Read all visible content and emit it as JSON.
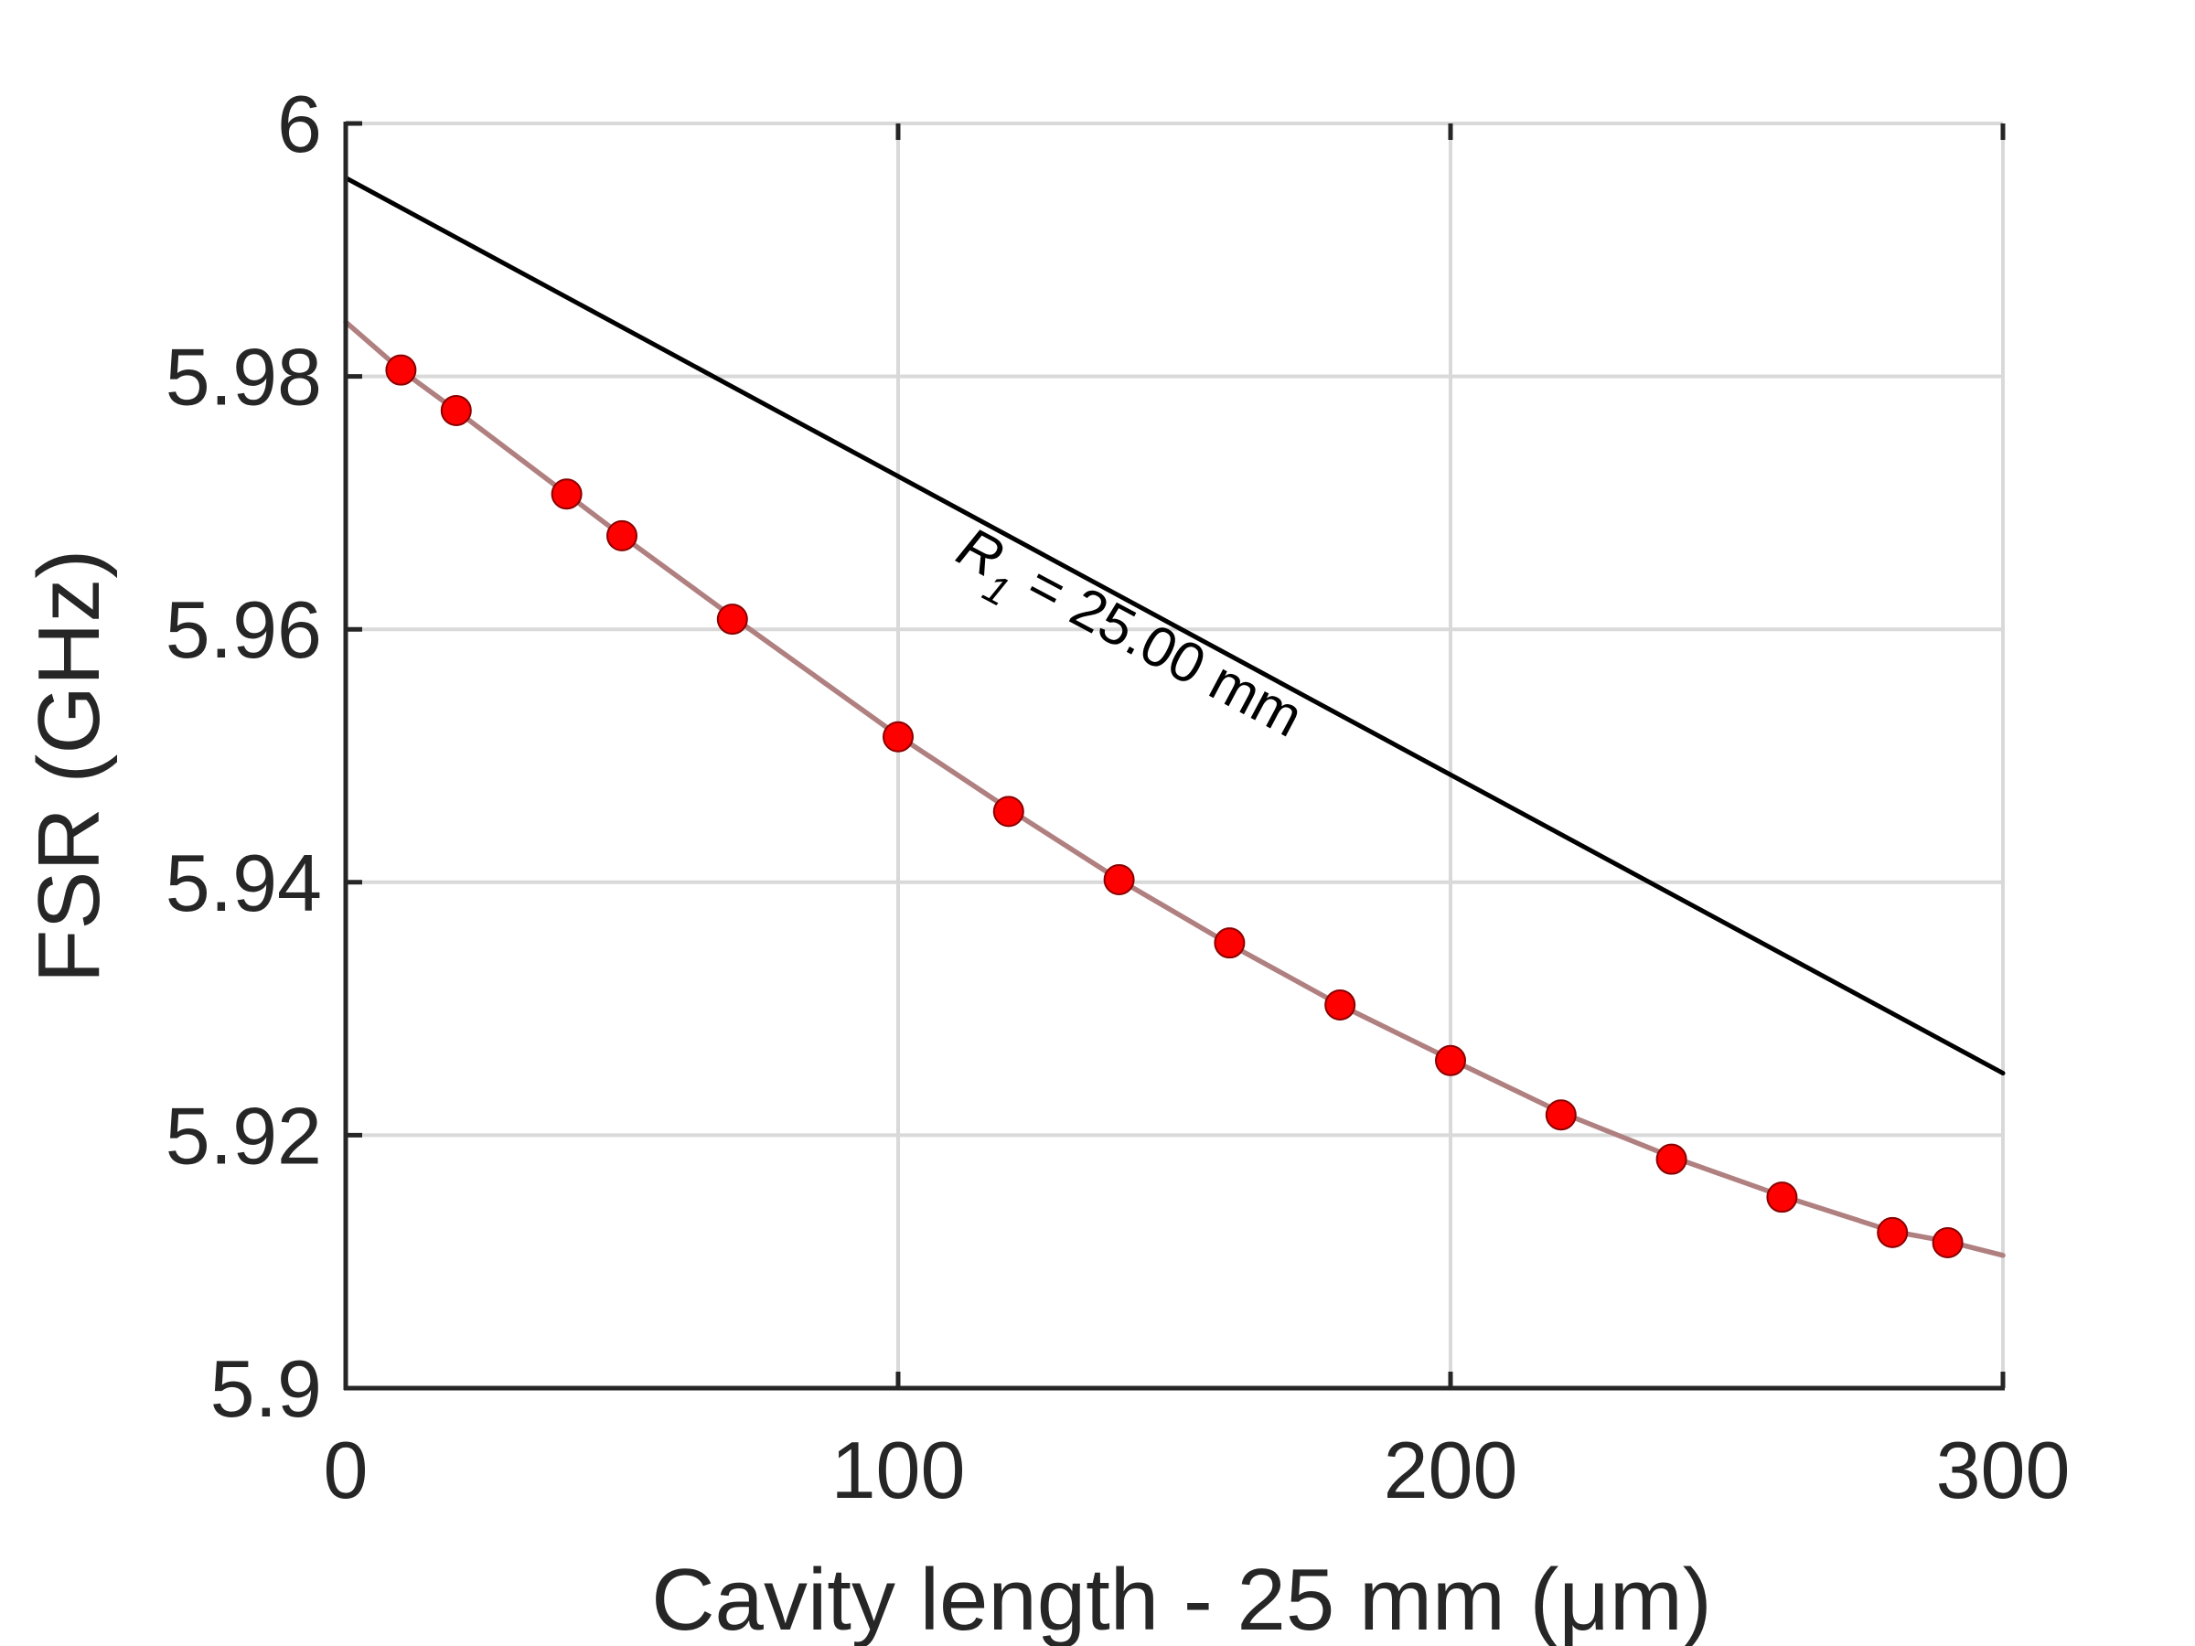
{
  "chart_data": {
    "type": "line",
    "xlabel": "Cavity length - 25 mm (μm)",
    "ylabel": "FSR (GHz)",
    "xlim": [
      0,
      300
    ],
    "ylim": [
      5.9,
      6.0
    ],
    "xticks": [
      0,
      100,
      200,
      300
    ],
    "xtick_labels": [
      "0",
      "100",
      "200",
      "300"
    ],
    "yticks": [
      5.9,
      5.92,
      5.94,
      5.96,
      5.98,
      6.0
    ],
    "ytick_labels": [
      "5.9",
      "5.92",
      "5.94",
      "5.96",
      "5.98",
      "6"
    ],
    "grid": true,
    "series": [
      {
        "kind": "line",
        "color": "#000000",
        "x": [
          0,
          300
        ],
        "y": [
          5.9957,
          5.9249
        ]
      },
      {
        "kind": "line",
        "color": "#b08080",
        "x": [
          0,
          10,
          20,
          40,
          50,
          70,
          100,
          120,
          140,
          160,
          180,
          200,
          220,
          240,
          260,
          280,
          290,
          300
        ],
        "y": [
          5.9843,
          5.9805,
          5.9773,
          5.9707,
          5.9674,
          5.961,
          5.9516,
          5.9458,
          5.9402,
          5.9351,
          5.9303,
          5.926,
          5.9218,
          5.9183,
          5.9152,
          5.9124,
          5.9116,
          5.9105
        ]
      },
      {
        "kind": "scatter",
        "color": "#ff0000",
        "x": [
          10,
          20,
          40,
          50,
          70,
          100,
          120,
          140,
          160,
          180,
          200,
          220,
          240,
          260,
          280,
          290
        ],
        "y": [
          5.9805,
          5.9773,
          5.9707,
          5.9674,
          5.9608,
          5.9515,
          5.9456,
          5.9402,
          5.9352,
          5.9303,
          5.9259,
          5.9216,
          5.9181,
          5.9151,
          5.9123,
          5.9115
        ]
      }
    ],
    "annotations": [
      {
        "text": "R",
        "subscript": "1",
        "suffix": " = 25.00 mm",
        "x": 110,
        "y": 5.9655,
        "rotation_deg": 28
      }
    ]
  }
}
